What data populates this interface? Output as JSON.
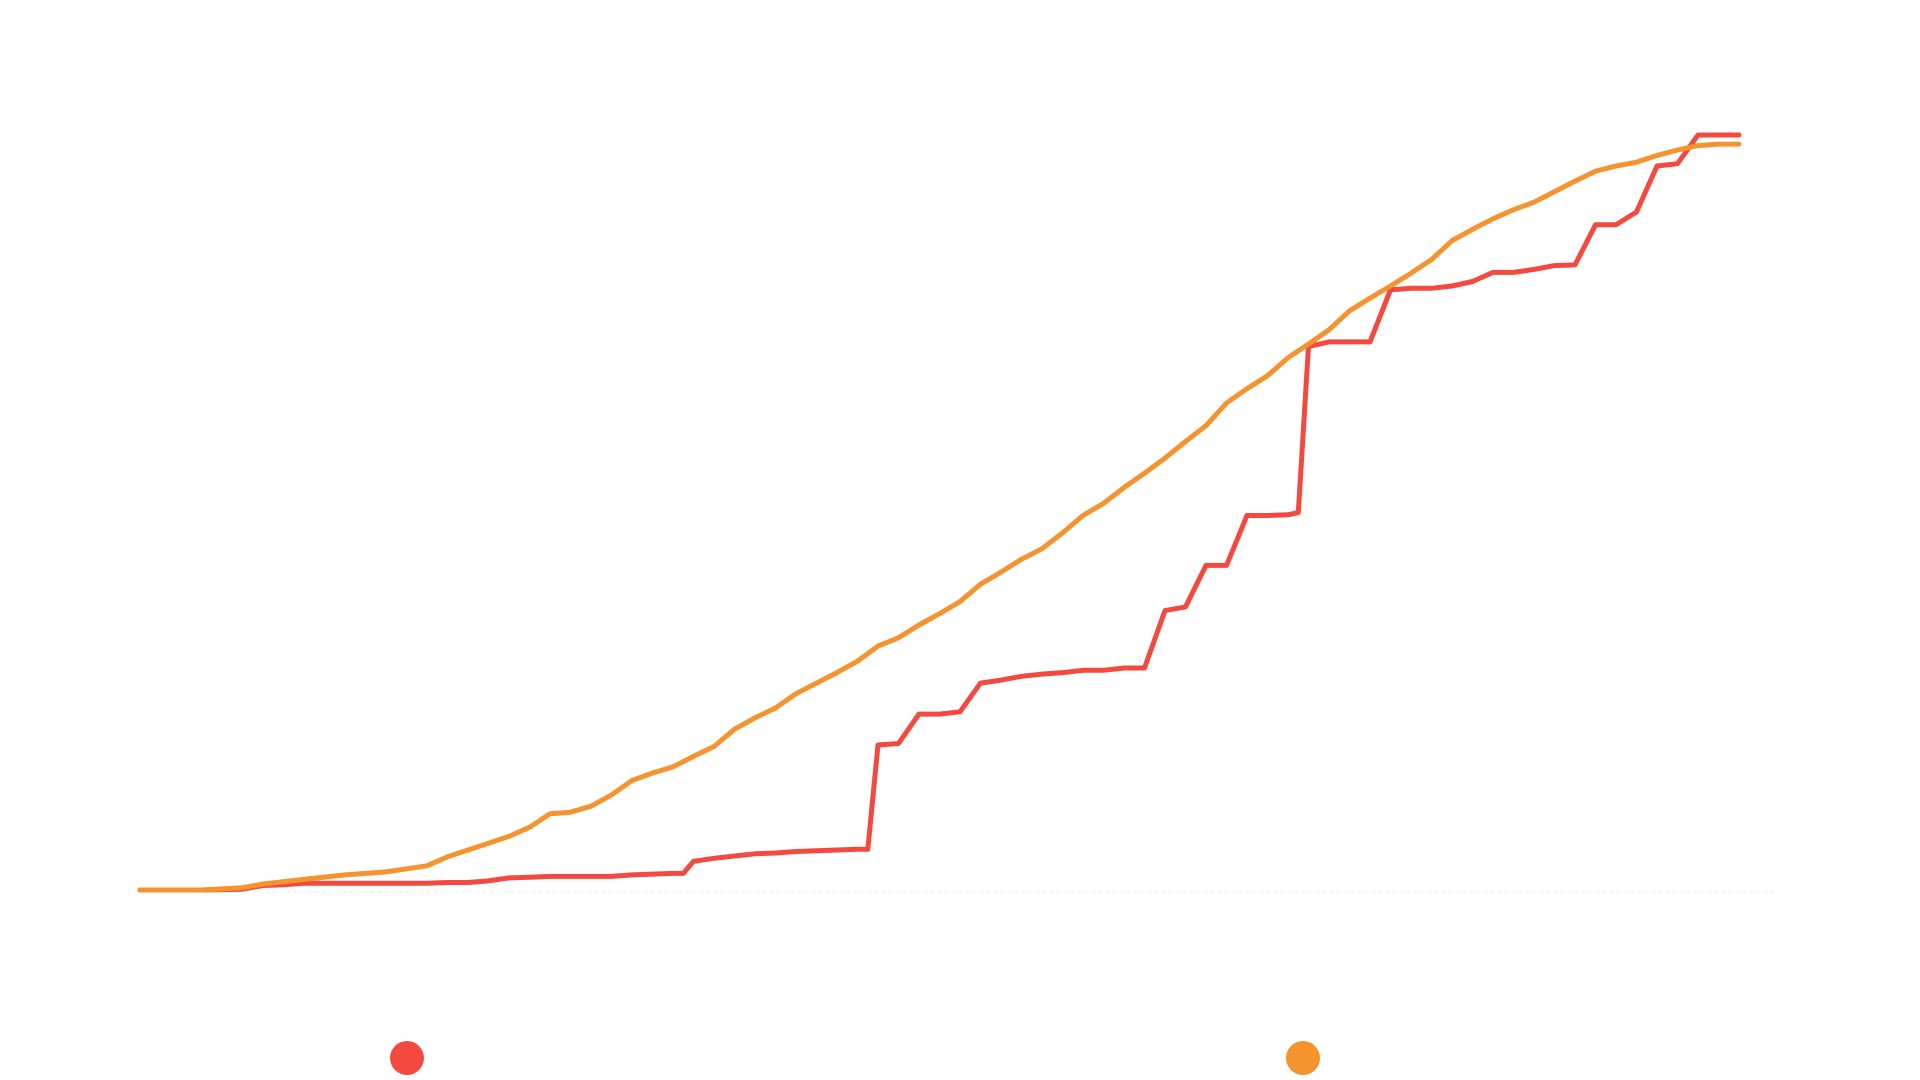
{
  "chart_data": {
    "type": "line",
    "title": "",
    "xlabel": "",
    "ylabel": "",
    "grid": false,
    "legend_placement": "bottom",
    "xlim": [
      0,
      80
    ],
    "ylim": [
      0,
      1
    ],
    "series": [
      {
        "name": "",
        "color": "#f4493f",
        "points": [
          [
            0,
            0
          ],
          [
            3,
            0
          ],
          [
            5,
            0.001
          ],
          [
            6,
            0.006
          ],
          [
            7,
            0.007
          ],
          [
            8,
            0.009
          ],
          [
            9,
            0.009
          ],
          [
            10,
            0.009
          ],
          [
            12,
            0.009
          ],
          [
            14,
            0.009
          ],
          [
            15,
            0.01
          ],
          [
            16,
            0.01
          ],
          [
            17,
            0.012
          ],
          [
            18,
            0.016
          ],
          [
            19,
            0.017
          ],
          [
            20,
            0.018
          ],
          [
            21,
            0.018
          ],
          [
            22,
            0.018
          ],
          [
            23,
            0.018
          ],
          [
            24,
            0.02
          ],
          [
            25,
            0.021
          ],
          [
            26,
            0.022
          ],
          [
            26.5,
            0.022
          ],
          [
            27,
            0.038
          ],
          [
            28,
            0.042
          ],
          [
            29,
            0.045
          ],
          [
            30,
            0.048
          ],
          [
            31,
            0.049
          ],
          [
            32,
            0.051
          ],
          [
            33,
            0.052
          ],
          [
            35,
            0.054
          ],
          [
            35.5,
            0.054
          ],
          [
            36,
            0.192
          ],
          [
            37,
            0.194
          ],
          [
            38,
            0.233
          ],
          [
            39,
            0.233
          ],
          [
            40,
            0.236
          ],
          [
            41,
            0.274
          ],
          [
            42,
            0.278
          ],
          [
            43,
            0.283
          ],
          [
            44,
            0.286
          ],
          [
            45,
            0.288
          ],
          [
            46,
            0.291
          ],
          [
            47,
            0.291
          ],
          [
            48,
            0.294
          ],
          [
            49,
            0.294
          ],
          [
            50,
            0.37
          ],
          [
            51,
            0.375
          ],
          [
            52,
            0.43
          ],
          [
            53,
            0.43
          ],
          [
            54,
            0.496
          ],
          [
            55,
            0.496
          ],
          [
            56,
            0.497
          ],
          [
            56.5,
            0.5
          ],
          [
            57,
            0.72
          ],
          [
            58,
            0.726
          ],
          [
            59,
            0.726
          ],
          [
            60,
            0.726
          ],
          [
            61,
            0.795
          ],
          [
            62,
            0.797
          ],
          [
            63,
            0.797
          ],
          [
            64,
            0.8
          ],
          [
            65,
            0.806
          ],
          [
            66,
            0.818
          ],
          [
            67,
            0.818
          ],
          [
            68,
            0.822
          ],
          [
            69,
            0.827
          ],
          [
            70,
            0.828
          ],
          [
            71,
            0.881
          ],
          [
            72,
            0.881
          ],
          [
            73,
            0.898
          ],
          [
            74,
            0.959
          ],
          [
            75,
            0.962
          ],
          [
            76,
            1.0
          ],
          [
            78,
            1.0
          ]
        ]
      },
      {
        "name": "",
        "color": "#f5932e",
        "points": [
          [
            0,
            0
          ],
          [
            3,
            0
          ],
          [
            5,
            0.003
          ],
          [
            6,
            0.008
          ],
          [
            8,
            0.014
          ],
          [
            10,
            0.02
          ],
          [
            12,
            0.024
          ],
          [
            14,
            0.032
          ],
          [
            15,
            0.044
          ],
          [
            17,
            0.062
          ],
          [
            18,
            0.071
          ],
          [
            19,
            0.083
          ],
          [
            20,
            0.101
          ],
          [
            21,
            0.103
          ],
          [
            22,
            0.111
          ],
          [
            23,
            0.126
          ],
          [
            24,
            0.145
          ],
          [
            25,
            0.155
          ],
          [
            26,
            0.163
          ],
          [
            27,
            0.177
          ],
          [
            28,
            0.19
          ],
          [
            29,
            0.213
          ],
          [
            30,
            0.228
          ],
          [
            31,
            0.241
          ],
          [
            32,
            0.26
          ],
          [
            33,
            0.274
          ],
          [
            34,
            0.288
          ],
          [
            35,
            0.303
          ],
          [
            36,
            0.323
          ],
          [
            37,
            0.334
          ],
          [
            38,
            0.351
          ],
          [
            39,
            0.366
          ],
          [
            40,
            0.382
          ],
          [
            41,
            0.405
          ],
          [
            42,
            0.421
          ],
          [
            43,
            0.438
          ],
          [
            44,
            0.452
          ],
          [
            45,
            0.473
          ],
          [
            46,
            0.496
          ],
          [
            47,
            0.512
          ],
          [
            48,
            0.533
          ],
          [
            49,
            0.552
          ],
          [
            50,
            0.572
          ],
          [
            51,
            0.594
          ],
          [
            52,
            0.615
          ],
          [
            53,
            0.645
          ],
          [
            54,
            0.664
          ],
          [
            55,
            0.681
          ],
          [
            56,
            0.705
          ],
          [
            57,
            0.723
          ],
          [
            58,
            0.742
          ],
          [
            59,
            0.767
          ],
          [
            60,
            0.784
          ],
          [
            61,
            0.8
          ],
          [
            62,
            0.817
          ],
          [
            63,
            0.835
          ],
          [
            64,
            0.86
          ],
          [
            65,
            0.875
          ],
          [
            66,
            0.889
          ],
          [
            67,
            0.901
          ],
          [
            68,
            0.911
          ],
          [
            69,
            0.925
          ],
          [
            70,
            0.939
          ],
          [
            71,
            0.952
          ],
          [
            72,
            0.959
          ],
          [
            73,
            0.964
          ],
          [
            74,
            0.973
          ],
          [
            75,
            0.98
          ],
          [
            76,
            0.986
          ],
          [
            77,
            0.988
          ],
          [
            78,
            0.988
          ]
        ]
      }
    ]
  }
}
